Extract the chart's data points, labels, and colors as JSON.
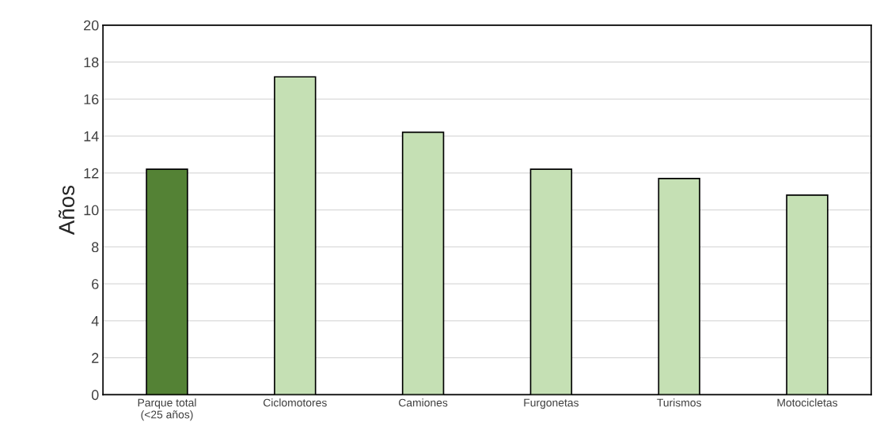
{
  "chart_data": {
    "type": "bar",
    "ylabel": "Años",
    "categories": [
      "Parque total\n(<25 años)",
      "Ciclomotores",
      "Camiones",
      "Furgonetas",
      "Turismos",
      "Motocicletas"
    ],
    "values": [
      12.2,
      17.2,
      14.2,
      12.2,
      11.7,
      10.8
    ],
    "colors": [
      "#548235",
      "#c5e0b4",
      "#c5e0b4",
      "#c5e0b4",
      "#c5e0b4",
      "#c5e0b4"
    ],
    "ylim": [
      0,
      20
    ],
    "yticks": [
      0,
      2,
      4,
      6,
      8,
      10,
      12,
      14,
      16,
      18,
      20
    ],
    "grid": "y"
  }
}
